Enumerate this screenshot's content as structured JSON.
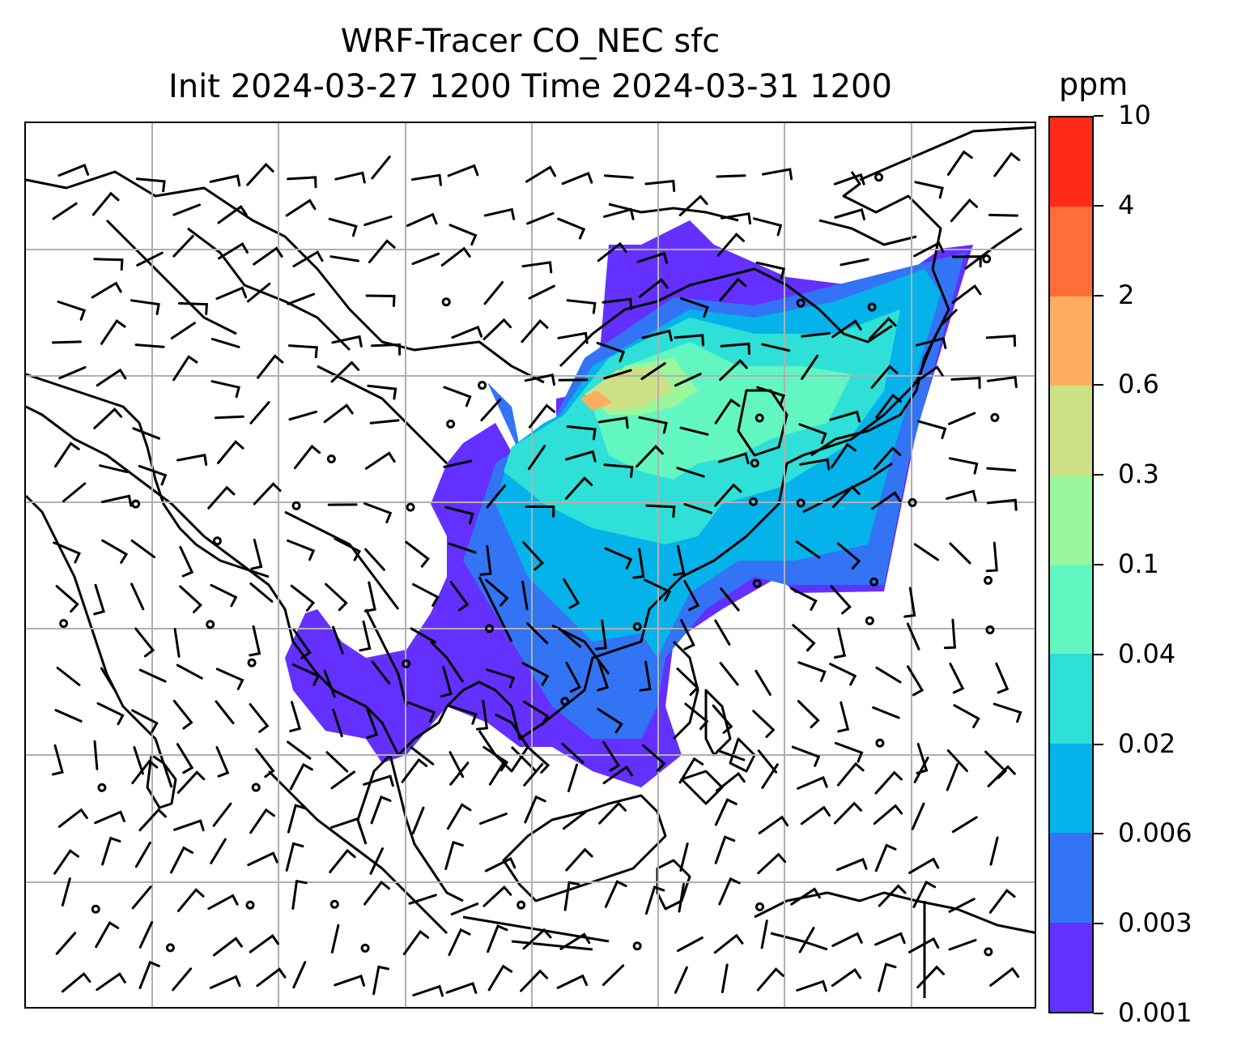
{
  "title": {
    "line1": "WRF-Tracer CO_NEC sfc",
    "line2": "Init 2024-03-27 1200 Time 2024-03-31 1200"
  },
  "colorbar": {
    "unit": "ppm",
    "ticks": [
      "10",
      "4",
      "2",
      "0.6",
      "0.3",
      "0.1",
      "0.04",
      "0.02",
      "0.006",
      "0.003",
      "0.001"
    ],
    "colors": [
      "#ff2a18",
      "#ff6e3a",
      "#ffad5e",
      "#cee085",
      "#9af79b",
      "#62f7c1",
      "#2ee0d7",
      "#05b3ea",
      "#3274f4",
      "#6430ff"
    ]
  },
  "map": {
    "gridlines": true,
    "wind_barbs": true,
    "concentration_field_colors": {
      "lowest": "#6430ff",
      "low": "#3274f4",
      "mid": "#05b3ea",
      "mid_high": "#2ee0d7",
      "high": "#62f7c1",
      "higher": "#9af79b",
      "peak": "#cee085",
      "max": "#ffad5e"
    }
  }
}
